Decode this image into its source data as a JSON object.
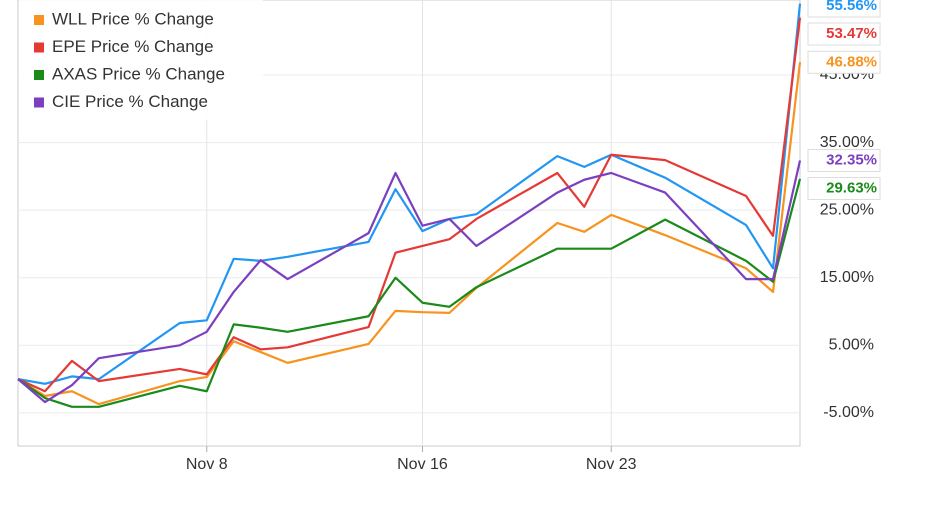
{
  "chart_data": {
    "type": "line",
    "x": [
      1,
      2,
      3,
      4,
      7,
      8,
      9,
      10,
      11,
      14,
      15,
      16,
      17,
      18,
      21,
      22,
      23,
      25,
      28,
      29,
      30
    ],
    "xlim": [
      1,
      30
    ],
    "xticks": [
      {
        "value": 8,
        "label": "Nov 8"
      },
      {
        "value": 16,
        "label": "Nov 16"
      },
      {
        "value": 23,
        "label": "Nov 23"
      }
    ],
    "ylim": [
      -9.9,
      56.1
    ],
    "yticks": [
      {
        "value": -5,
        "label": "-5.00%"
      },
      {
        "value": 5,
        "label": "5.00%"
      },
      {
        "value": 15,
        "label": "15.00%"
      },
      {
        "value": 25,
        "label": "25.00%"
      },
      {
        "value": 35,
        "label": "35.00%"
      },
      {
        "value": 45,
        "label": "45.00%"
      }
    ],
    "grid": true,
    "legend": "top-left",
    "series": [
      {
        "color": "#2196f3",
        "end_label": "55.56%",
        "values": [
          0,
          -0.7,
          0.4,
          0,
          8.3,
          8.7,
          17.8,
          17.5,
          18.1,
          20.3,
          28.1,
          21.9,
          23.7,
          24.4,
          33.0,
          31.4,
          33.2,
          29.8,
          22.8,
          16.4,
          55.56
        ]
      },
      {
        "name": "WLL Price % Change",
        "color": "#f7931e",
        "end_label": "46.88%",
        "values": [
          0,
          -2.5,
          -1.8,
          -3.7,
          -0.3,
          0.3,
          5.6,
          4.0,
          2.4,
          5.2,
          10.1,
          9.9,
          9.8,
          13.5,
          23.1,
          21.8,
          24.3,
          21.3,
          16.4,
          12.9,
          46.88
        ]
      },
      {
        "name": "EPE Price % Change",
        "color": "#e53935",
        "end_label": "53.47%",
        "values": [
          0,
          -1.8,
          2.7,
          -0.3,
          1.5,
          0.7,
          6.2,
          4.4,
          4.7,
          7.7,
          18.7,
          19.7,
          20.7,
          23.7,
          30.5,
          25.5,
          33.2,
          32.4,
          27.1,
          21.2,
          53.47
        ]
      },
      {
        "name": "AXAS Price % Change",
        "color": "#1a8a1a",
        "end_label": "29.63%",
        "values": [
          0,
          -2.8,
          -4.1,
          -4.1,
          -1.0,
          -1.8,
          8.1,
          7.6,
          7.0,
          9.3,
          15.0,
          11.3,
          10.7,
          13.6,
          19.3,
          19.3,
          19.3,
          23.6,
          17.5,
          14.4,
          29.63
        ]
      },
      {
        "name": "CIE Price % Change",
        "color": "#7b3fbf",
        "end_label": "32.35%",
        "values": [
          0,
          -3.4,
          -0.9,
          3.1,
          5.0,
          7.0,
          12.9,
          17.6,
          14.8,
          21.6,
          30.5,
          22.7,
          23.7,
          19.7,
          27.6,
          29.5,
          30.5,
          27.6,
          14.8,
          14.8,
          32.35
        ]
      }
    ]
  }
}
